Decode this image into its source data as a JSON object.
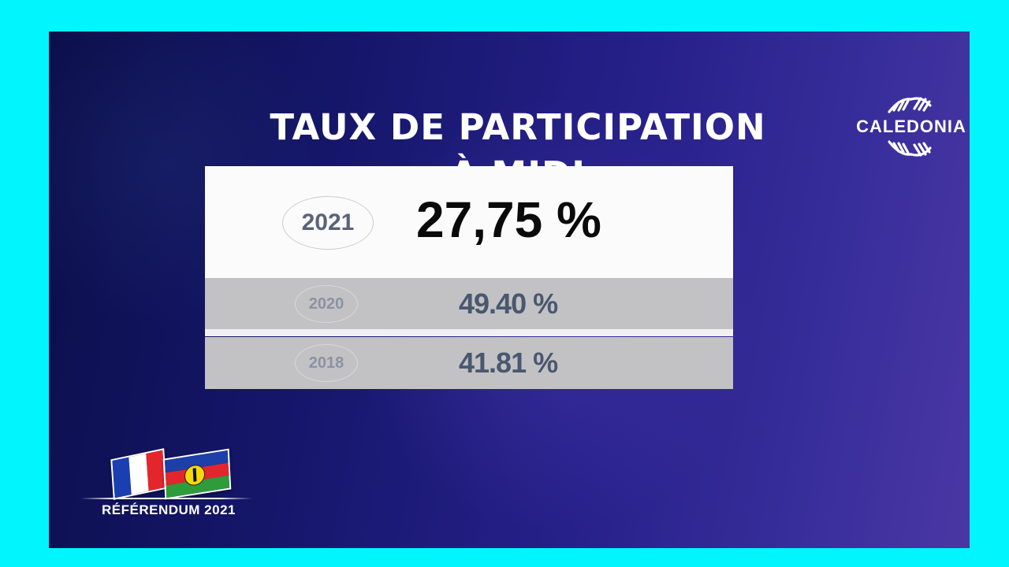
{
  "title": {
    "line1": "TAUX DE PARTICIPATION",
    "line2": "À MIDI"
  },
  "logo": {
    "name": "CALEDONIA",
    "color": "#ffffff"
  },
  "rows": [
    {
      "year": "2021",
      "value": "27,75 %"
    },
    {
      "year": "2020",
      "value": "49.40 %"
    },
    {
      "year": "2018",
      "value": "41.81 %"
    }
  ],
  "badge": {
    "label": "RÉFÉRENDUM 2021",
    "flags": [
      "france-flag",
      "new-caledonia-flag"
    ]
  },
  "colors": {
    "border": "#00f5fc",
    "background_dark": "#0b0f4a",
    "background_light": "#4a37a4",
    "highlight_row": "#fbfbfb",
    "other_rows": "#c2c2c4",
    "fr_blue": "#1a3fb0",
    "fr_white": "#ffffff",
    "fr_red": "#e4262c",
    "nc_blue": "#1c3fa8",
    "nc_red": "#e3262e",
    "nc_green": "#2f9b3a"
  }
}
